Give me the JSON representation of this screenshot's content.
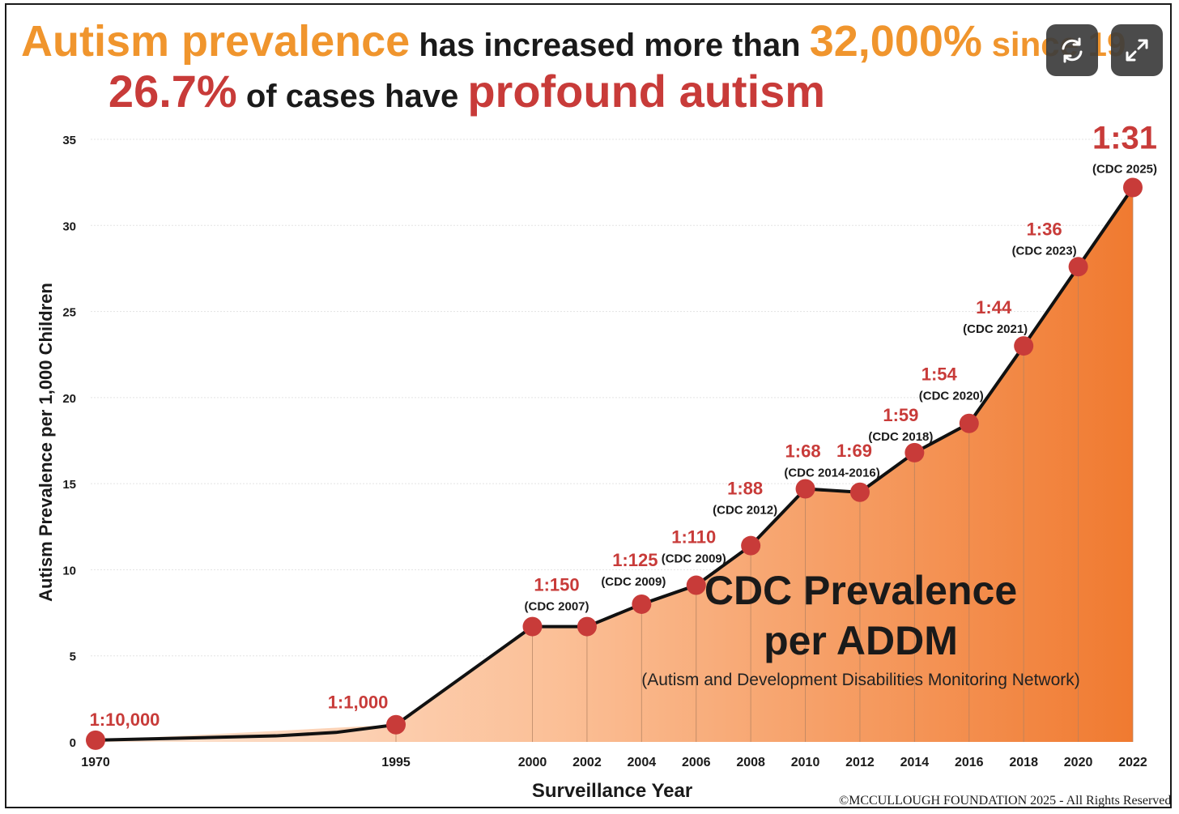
{
  "header": {
    "line1_accent": "Autism prevalence",
    "line1_text": " has increased more than ",
    "line1_value": "32,000%",
    "line1_tail": " since 19",
    "line2_value": "26.7%",
    "line2_text": " of cases have ",
    "line2_accent": "profound autism",
    "colors": {
      "orange": "#f0952d",
      "red": "#c83b39",
      "text": "#1a1a1a"
    }
  },
  "controls": [
    {
      "name": "refresh-button",
      "icon": "refresh-icon"
    },
    {
      "name": "expand-button",
      "icon": "expand-icon"
    }
  ],
  "chart_data": {
    "type": "area",
    "xlabel": "Surveillance Year",
    "ylabel": "Autism Prevalence per 1,000 Children",
    "ylim": [
      0,
      35
    ],
    "yticks": [
      0,
      5,
      10,
      15,
      20,
      25,
      30,
      35
    ],
    "grid": true,
    "x_ticks": [
      "1970",
      "1995",
      "2000",
      "2002",
      "2004",
      "2006",
      "2008",
      "2010",
      "2012",
      "2014",
      "2016",
      "2018",
      "2020",
      "2022"
    ],
    "points": [
      {
        "x": 1970,
        "y": 0.1,
        "ratio": "1:10,000",
        "source": ""
      },
      {
        "x": 1995,
        "y": 1.0,
        "ratio": "1:1,000",
        "source": ""
      },
      {
        "x": 2000,
        "y": 6.7,
        "ratio": "1:150",
        "source": "(CDC 2007)"
      },
      {
        "x": 2002,
        "y": 6.7,
        "ratio": "",
        "source": ""
      },
      {
        "x": 2004,
        "y": 8.0,
        "ratio": "1:125",
        "source": "(CDC 2009)"
      },
      {
        "x": 2006,
        "y": 9.1,
        "ratio": "1:110",
        "source": "(CDC 2009)"
      },
      {
        "x": 2008,
        "y": 11.4,
        "ratio": "1:88",
        "source": "(CDC 2012)"
      },
      {
        "x": 2010,
        "y": 14.7,
        "ratio": "1:68",
        "source": "(CDC 2014-2016)"
      },
      {
        "x": 2012,
        "y": 14.5,
        "ratio": "1:69",
        "source": ""
      },
      {
        "x": 2014,
        "y": 16.8,
        "ratio": "1:59",
        "source": "(CDC 2018)"
      },
      {
        "x": 2016,
        "y": 18.5,
        "ratio": "1:54",
        "source": "(CDC 2020)"
      },
      {
        "x": 2018,
        "y": 23.0,
        "ratio": "1:44",
        "source": "(CDC 2021)"
      },
      {
        "x": 2020,
        "y": 27.6,
        "ratio": "1:36",
        "source": "(CDC 2023)"
      },
      {
        "x": 2022,
        "y": 32.2,
        "ratio": "1:31",
        "source": "(CDC 2025)"
      }
    ],
    "overlay_title_line1": "CDC Prevalence",
    "overlay_title_line2": "per ADDM",
    "overlay_subtitle": "(Autism and Development Disabilities Monitoring Network)",
    "colors": {
      "line": "#111111",
      "marker": "#c83b39",
      "ratio_label": "#c83b39",
      "fill_start": "#fde6d6",
      "fill_end": "#f07a30",
      "grid": "#e3e3e3"
    }
  },
  "footer": {
    "copyright_symbol": "©",
    "text": "MCCULLOUGH FOUNDATION 2025 - All Rights Reserved."
  }
}
